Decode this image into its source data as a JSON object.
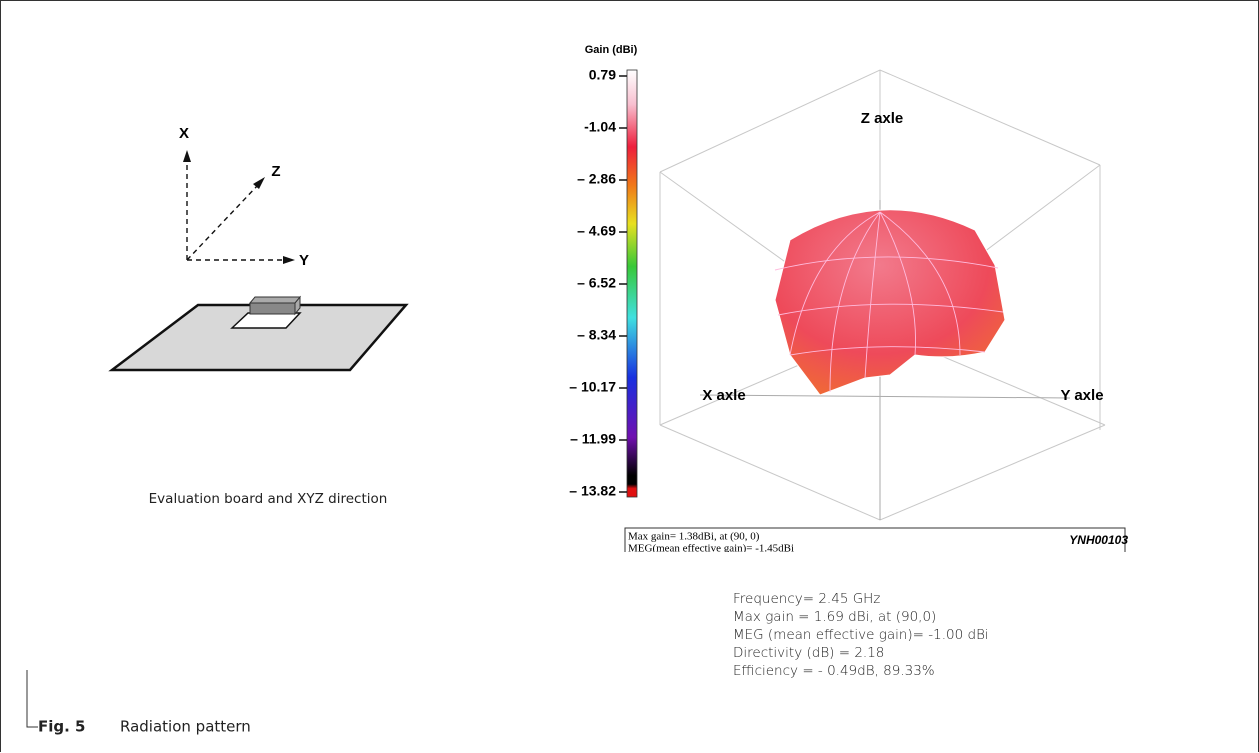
{
  "board": {
    "axes": [
      "X",
      "Z",
      "Y"
    ],
    "caption": "Evaluation board and XYZ direction"
  },
  "colorbar": {
    "title": "Gain (dBi)",
    "labels": [
      "0.79",
      "-1.04",
      "– 2.86",
      "– 4.69",
      "– 6.52",
      "– 8.34",
      "– 10.17",
      "– 11.99",
      "– 13.82"
    ]
  },
  "pattern": {
    "axes": [
      "Z axle",
      "X axle",
      "Y axle"
    ],
    "info": [
      "Max gain= 1.38dBi, at (90, 0)",
      "MEG(mean effective gain)= -1.45dBi"
    ],
    "code": "YNH00103"
  },
  "stats": [
    "Frequency= 2.45 GHz",
    "Max gain = 1.69 dBi, at (90,0)",
    "MEG (mean effective gain)= -1.00 dBi",
    "Directivity (dB) = 2.18",
    "Efficiency = - 0.49dB, 89.33%"
  ],
  "figure": {
    "number": "Fig. 5",
    "title": "Radiation pattern"
  }
}
